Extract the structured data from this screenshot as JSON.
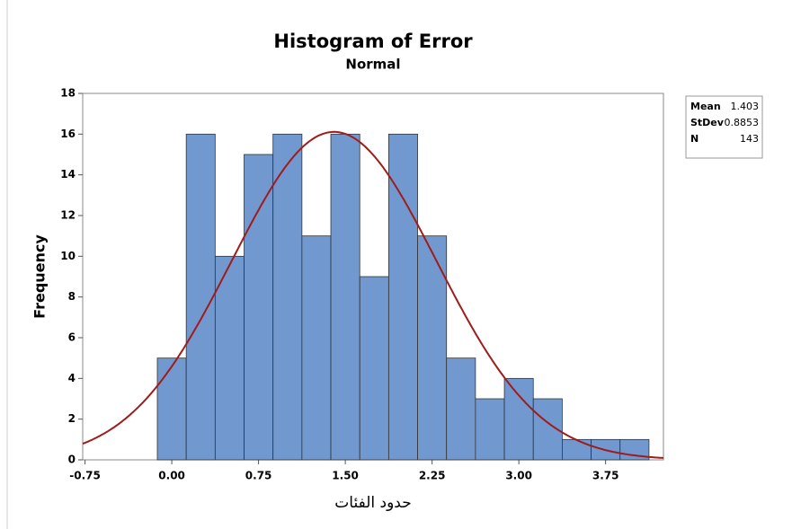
{
  "chart_data": {
    "type": "histogram",
    "title": "Histogram of Error",
    "subtitle": "Normal",
    "x_label": "حدود الفئات",
    "y_label": "Frequency",
    "bins": [
      -0.125,
      0.125,
      0.375,
      0.625,
      0.875,
      1.125,
      1.375,
      1.625,
      1.875,
      2.125,
      2.375,
      2.625,
      2.875,
      3.125,
      3.375,
      3.625,
      3.875,
      4.125
    ],
    "values": [
      5,
      16,
      10,
      15,
      16,
      11,
      16,
      9,
      16,
      11,
      5,
      3,
      4,
      3,
      1,
      1,
      1
    ],
    "color": "#7199cf",
    "curve_color": "#a01c1c",
    "xlim": [
      -0.77,
      4.25
    ],
    "xticks": [
      -0.75,
      {
        "value": 0,
        "label": "0.00"
      },
      0.75,
      {
        "value": 1.5,
        "label": "1.50"
      },
      2.25,
      {
        "value": 3,
        "label": "3.00"
      },
      3.75
    ],
    "ylim": [
      0,
      18
    ],
    "yticks": [
      0,
      2,
      4,
      6,
      8,
      10,
      12,
      14,
      16,
      18
    ],
    "stats": [
      {
        "label": "Mean",
        "value": 1.403
      },
      {
        "label": "StDev",
        "value": 0.8853
      },
      {
        "label": "N",
        "value": 143
      }
    ]
  }
}
